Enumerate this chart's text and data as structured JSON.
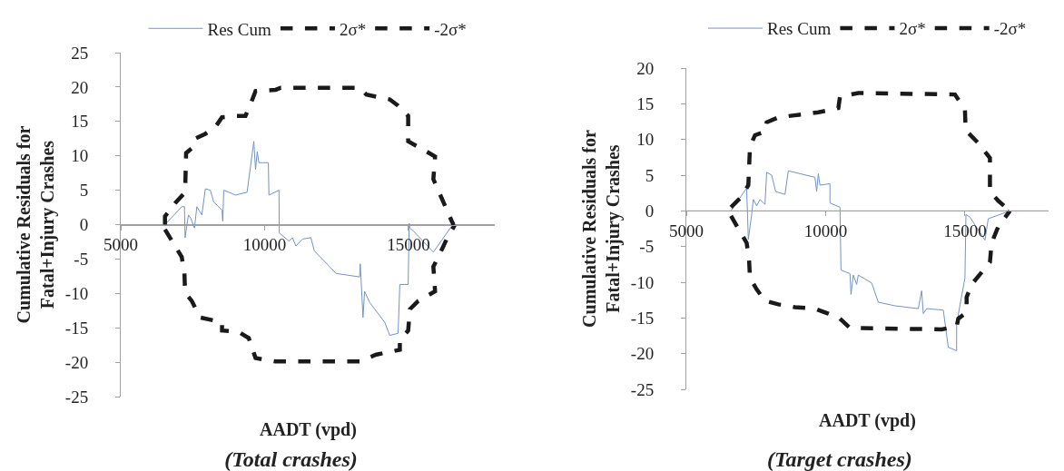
{
  "chart_data": [
    {
      "type": "line",
      "title": "(Total crashes)",
      "xlabel": "AADT (vpd)",
      "ylabel": "Cumulative Residuals for\nFatal+Injury Crashes",
      "xlim": [
        5000,
        18000
      ],
      "xticks": [
        5000,
        10000,
        15000
      ],
      "ylim": [
        -25,
        25
      ],
      "yticks": [
        -25,
        -20,
        -15,
        -10,
        -5,
        0,
        5,
        10,
        15,
        20,
        25
      ],
      "legend": "top",
      "series": [
        {
          "name": "Res Cum",
          "color": "#7393c4",
          "line_style": "solid",
          "x": [
            6537,
            7120,
            7214,
            7237,
            7352,
            7435,
            7563,
            7645,
            7820,
            7940,
            8115,
            8230,
            8520,
            8545,
            8580,
            8985,
            9390,
            9625,
            9685,
            9745,
            9800,
            10130,
            10150,
            10500,
            10510,
            10850,
            10970,
            11085,
            11320,
            11610,
            11725,
            12485,
            13300,
            13325,
            13420,
            13475,
            13650,
            14175,
            14350,
            14640,
            14700,
            14990,
            15025,
            15050,
            15165,
            15865,
            16505,
            16565
          ],
          "values": [
            0,
            2.6,
            2.6,
            -1.9,
            1.4,
            0.9,
            -0.5,
            2.6,
            1.4,
            5.2,
            5.0,
            3.3,
            2.1,
            0.5,
            5.0,
            4.3,
            4.7,
            12.1,
            8.0,
            10.6,
            9.0,
            9.0,
            4.3,
            5.0,
            -1.2,
            -2.4,
            -1.9,
            -3.1,
            -2.1,
            -1.9,
            -3.8,
            -7.1,
            -7.6,
            -5.7,
            -13.5,
            -9.7,
            -11.3,
            -14.2,
            -16.1,
            -15.8,
            -8.7,
            -8.7,
            0.2,
            -0.5,
            -0.9,
            -4.0,
            -0.2,
            0
          ]
        },
        {
          "name": "2σ*",
          "color": "#1a1a1a",
          "line_style": "dashed",
          "x": [
            6537,
            6537,
            6887,
            7237,
            7272,
            7530,
            7590,
            7940,
            8290,
            8520,
            8985,
            9335,
            9510,
            9685,
            10385,
            10560,
            13300,
            13535,
            14350,
            14640,
            14990,
            14990,
            15515,
            15925,
            15865,
            16505,
            16565
          ],
          "values": [
            0,
            1.2,
            3.1,
            4.7,
            10.4,
            11.3,
            12.5,
            13.2,
            14.2,
            15.6,
            15.8,
            15.8,
            17.5,
            19.4,
            19.6,
            19.9,
            19.9,
            18.9,
            18.2,
            17.3,
            15.8,
            12.1,
            10.9,
            9.9,
            6.6,
            0.5,
            0
          ]
        },
        {
          "name": "-2σ*",
          "color": "#1a1a1a",
          "line_style": "dashed",
          "x": [
            6537,
            7120,
            7214,
            7237,
            7470,
            7760,
            8520,
            8520,
            9100,
            9450,
            9685,
            10385,
            13300,
            13880,
            14700,
            14700,
            14990,
            15050,
            15340,
            15925,
            15865,
            16040,
            16330,
            16620
          ],
          "values": [
            -0.7,
            -4.7,
            -7.1,
            -9.9,
            -11.1,
            -13.5,
            -14.2,
            -15.4,
            -15.6,
            -16.5,
            -19.4,
            -19.9,
            -19.9,
            -18.9,
            -18.2,
            -16.8,
            -15.4,
            -12.3,
            -11.1,
            -9.7,
            -6.1,
            -4.7,
            -2.1,
            0
          ]
        }
      ]
    },
    {
      "type": "line",
      "title": "(Target crashes)",
      "xlabel": "AADT (vpd)",
      "ylabel": "Cumulative Residuals for\nFatal+Injury Crashes",
      "xlim": [
        5000,
        18000
      ],
      "xticks": [
        5000,
        10000,
        15000
      ],
      "ylim": [
        -25,
        20
      ],
      "yticks": [
        -25,
        -20,
        -15,
        -10,
        -5,
        0,
        5,
        10,
        15,
        20
      ],
      "legend": "top",
      "series": [
        {
          "name": "Res Cum",
          "color": "#7393c4",
          "line_style": "solid",
          "x": [
            6603,
            7165,
            7225,
            7345,
            7405,
            7524,
            7644,
            7823,
            7883,
            8063,
            8206,
            8541,
            8660,
            9617,
            9677,
            9737,
            9797,
            10155,
            10155,
            10514,
            10550,
            10873,
            10909,
            10992,
            11112,
            11172,
            11650,
            11889,
            12487,
            13325,
            13445,
            13505,
            13625,
            14222,
            14401,
            14700,
            14700,
            14999,
            15035,
            15180,
            15717,
            15836,
            16614
          ],
          "values": [
            0,
            3.2,
            -4.0,
            -0.5,
            1.6,
            0.7,
            1.6,
            0.9,
            5.4,
            5.0,
            2.7,
            2.3,
            5.6,
            4.7,
            2.7,
            5.2,
            3.6,
            3.8,
            1.1,
            0.5,
            -8.3,
            -8.8,
            -11.7,
            -9.0,
            -10.3,
            -9.0,
            -10.1,
            -12.8,
            -13.3,
            -13.7,
            -11.2,
            -14.4,
            -13.7,
            -13.9,
            -19.1,
            -19.6,
            -15.8,
            -9.4,
            -0.5,
            -0.9,
            -4.1,
            -1.1,
            0
          ]
        },
        {
          "name": "2σ*",
          "color": "#1a1a1a",
          "line_style": "dashed",
          "x": [
            6603,
            6986,
            7225,
            7285,
            7465,
            7823,
            7883,
            8302,
            9139,
            9737,
            10455,
            10514,
            11172,
            14640,
            14999,
            15023,
            15478,
            15896,
            15896,
            16195,
            16614
          ],
          "values": [
            0.5,
            2.0,
            3.6,
            9.0,
            10.6,
            11.1,
            12.4,
            13.1,
            13.5,
            13.8,
            14.4,
            16.0,
            16.5,
            16.3,
            14.2,
            11.3,
            9.5,
            7.4,
            2.7,
            1.4,
            0
          ]
        },
        {
          "name": "-2σ*",
          "color": "#1a1a1a",
          "line_style": "dashed",
          "x": [
            6603,
            7165,
            7249,
            7285,
            7524,
            7823,
            8302,
            8900,
            9617,
            10096,
            10514,
            10873,
            14162,
            14700,
            14760,
            15059,
            15059,
            15239,
            15896,
            15956,
            16195,
            16614
          ],
          "values": [
            -0.7,
            -4.5,
            -6.7,
            -9.4,
            -11.0,
            -12.6,
            -13.1,
            -13.5,
            -13.7,
            -14.4,
            -15.1,
            -16.4,
            -16.6,
            -16.2,
            -15.1,
            -14.2,
            -12.1,
            -10.3,
            -7.2,
            -4.5,
            -2.2,
            0
          ]
        }
      ]
    }
  ]
}
